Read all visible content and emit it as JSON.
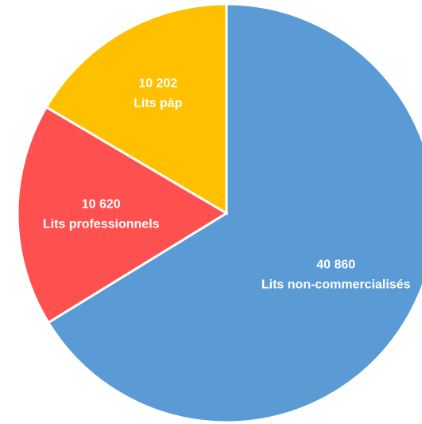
{
  "chart_data": {
    "type": "pie",
    "categories": [
      "Lits non-commercialisés",
      "Lits professionnels",
      "Lits pàp"
    ],
    "values": [
      40860,
      10620,
      10202
    ],
    "value_labels": [
      "40 860",
      "10 620",
      "10 202"
    ],
    "colors": [
      "#5b9bd5",
      "#ff5050",
      "#ffc000"
    ]
  }
}
